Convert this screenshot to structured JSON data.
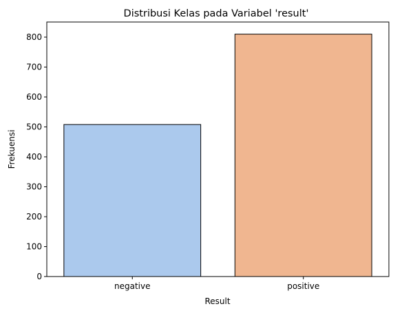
{
  "chart_data": {
    "type": "bar",
    "title": "Distribusi Kelas pada Variabel 'result'",
    "xlabel": "Result",
    "ylabel": "Frekuensi",
    "categories": [
      "negative",
      "positive"
    ],
    "values": [
      508,
      810
    ],
    "ylim": [
      0,
      850.5
    ],
    "yticks": [
      0,
      100,
      200,
      300,
      400,
      500,
      600,
      700,
      800
    ],
    "colors": [
      "#abc9ed",
      "#f0b690"
    ],
    "edge_color": "#000000",
    "grid": false,
    "legend": "none"
  }
}
